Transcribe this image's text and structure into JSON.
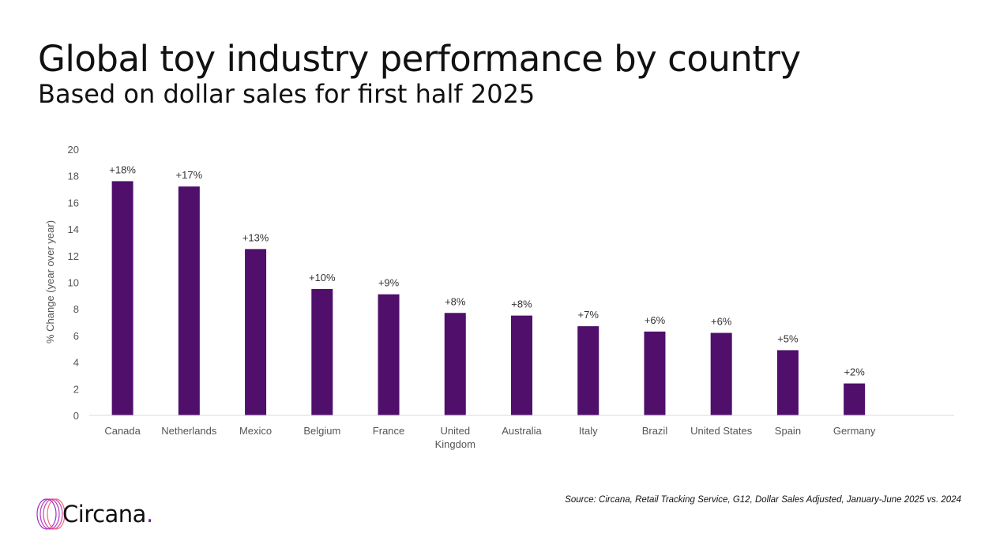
{
  "chart_data": {
    "type": "bar",
    "title": "Global toy industry performance by country",
    "subtitle": "Based on dollar sales for first half 2025",
    "ylabel": "% Change (year over year)",
    "xlabel": "",
    "ylim": [
      0,
      20
    ],
    "yticks": [
      0,
      2,
      4,
      6,
      8,
      10,
      12,
      14,
      16,
      18,
      20
    ],
    "grid": false,
    "categories": [
      "Canada",
      "Netherlands",
      "Mexico",
      "Belgium",
      "France",
      "United Kingdom",
      "Australia",
      "Italy",
      "Brazil",
      "United States",
      "Spain",
      "Germany"
    ],
    "category_lines": [
      [
        "Canada"
      ],
      [
        "Netherlands"
      ],
      [
        "Mexico"
      ],
      [
        "Belgium"
      ],
      [
        "France"
      ],
      [
        "United",
        "Kingdom"
      ],
      [
        "Australia"
      ],
      [
        "Italy"
      ],
      [
        "Brazil"
      ],
      [
        "United States"
      ],
      [
        "Spain"
      ],
      [
        "Germany"
      ]
    ],
    "values": [
      17.6,
      17.2,
      12.5,
      9.5,
      9.1,
      7.7,
      7.5,
      6.7,
      6.3,
      6.2,
      4.9,
      2.4
    ],
    "data_labels": [
      "+18%",
      "+17%",
      "+13%",
      "+10%",
      "+9%",
      "+8%",
      "+8%",
      "+7%",
      "+6%",
      "+6%",
      "+5%",
      "+2%"
    ],
    "bar_color": "#4f0f6b"
  },
  "source": "Source: Circana, Retail Tracking Service, G12, Dollar Sales Adjusted, January-June 2025 vs. 2024",
  "logo": {
    "text": "Circana",
    "dot": ".",
    "accent": "#7a1fa2"
  }
}
